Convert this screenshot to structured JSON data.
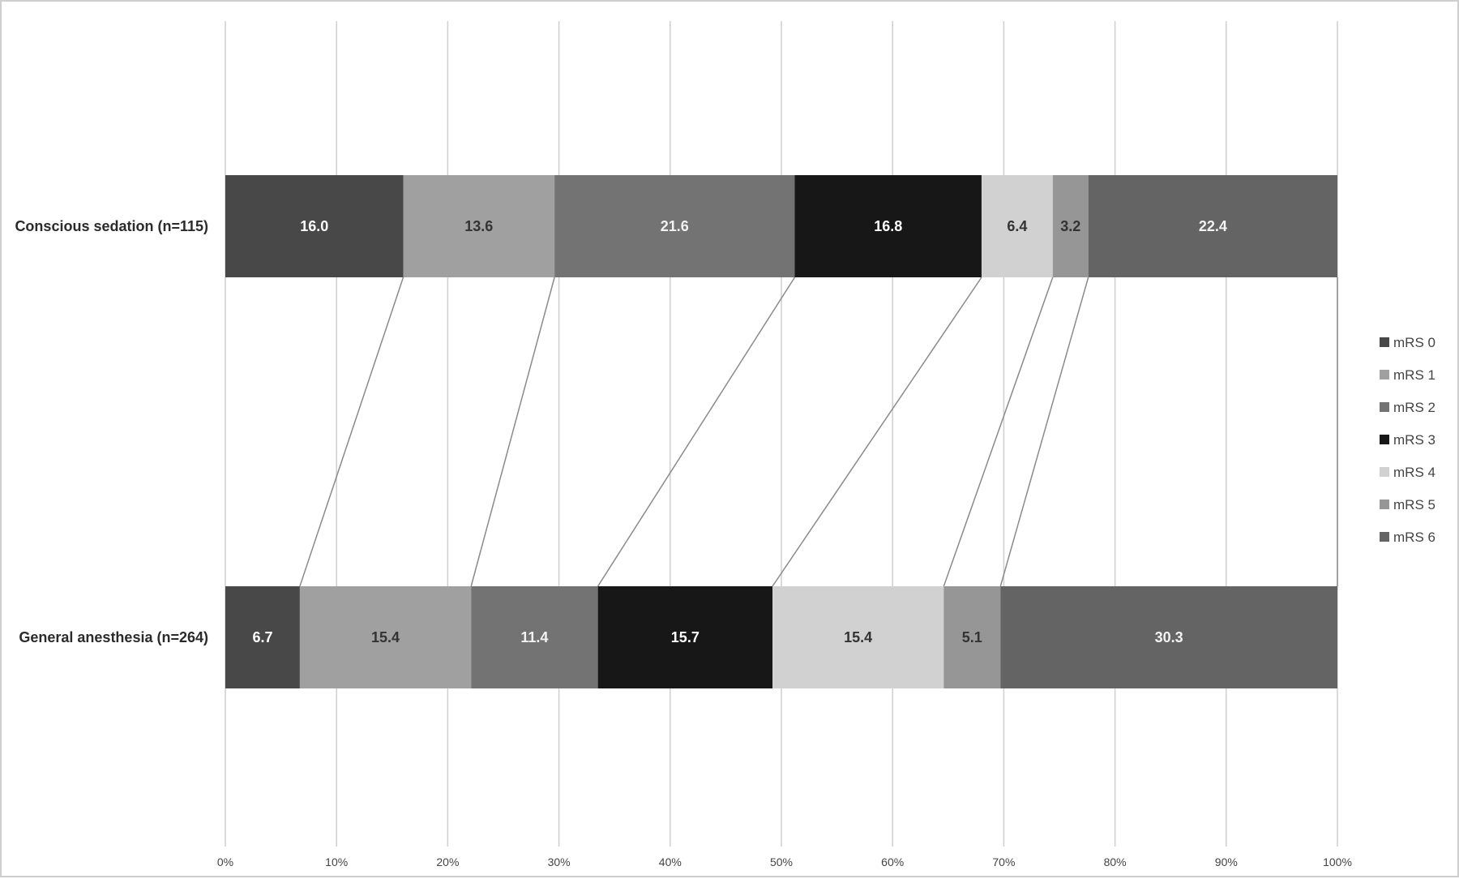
{
  "chart_data": {
    "type": "bar",
    "orientation": "horizontal",
    "stacked": "percent",
    "categories": [
      "Conscious sedation (n=115)",
      "General anesthesia (n=264)"
    ],
    "series": [
      {
        "name": "mRS 0",
        "values": [
          16.0,
          6.7
        ],
        "color": "#484848",
        "label_color": "#ffffff"
      },
      {
        "name": "mRS 1",
        "values": [
          13.6,
          15.4
        ],
        "color": "#a0a0a0",
        "label_color": "#333333"
      },
      {
        "name": "mRS 2",
        "values": [
          21.6,
          11.4
        ],
        "color": "#737373",
        "label_color": "#f2f2f2"
      },
      {
        "name": "mRS 3",
        "values": [
          16.8,
          15.7
        ],
        "color": "#171717",
        "label_color": "#ffffff"
      },
      {
        "name": "mRS 4",
        "values": [
          6.4,
          15.4
        ],
        "color": "#d1d1d1",
        "label_color": "#333333"
      },
      {
        "name": "mRS 5",
        "values": [
          3.2,
          5.1
        ],
        "color": "#969696",
        "label_color": "#333333"
      },
      {
        "name": "mRS 6",
        "values": [
          22.4,
          30.3
        ],
        "color": "#646464",
        "label_color": "#f2f2f2"
      }
    ],
    "x_ticks": [
      "0%",
      "10%",
      "20%",
      "30%",
      "40%",
      "50%",
      "60%",
      "70%",
      "80%",
      "90%",
      "100%"
    ],
    "xlim": [
      0,
      100
    ],
    "grid": "vertical",
    "series_lines": true,
    "legend_position": "right",
    "title": "",
    "xlabel": "",
    "ylabel": ""
  }
}
